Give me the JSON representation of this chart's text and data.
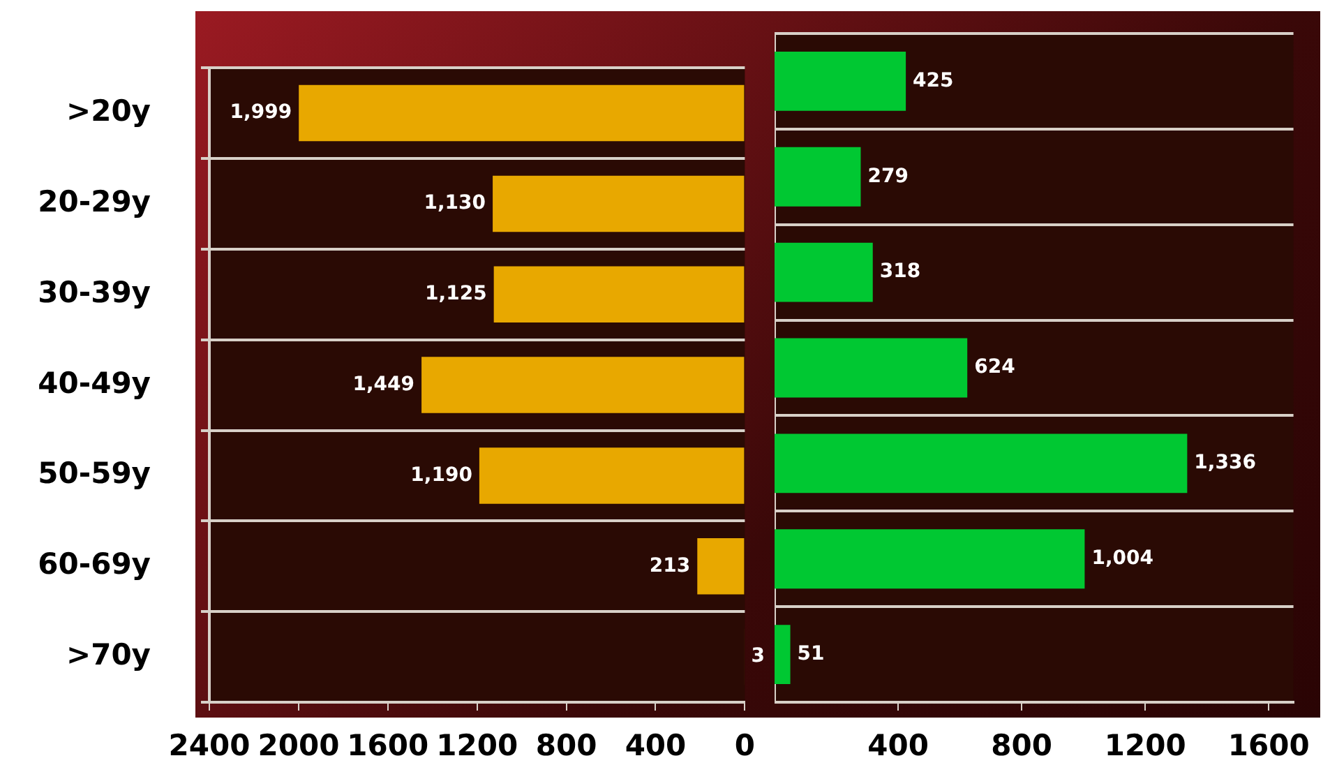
{
  "chart_data": [
    {
      "type": "bar",
      "orientation": "horizontal",
      "categories": [
        ">20y",
        "20-29y",
        "30-39y",
        "40-49y",
        "50-59y",
        "60-69y",
        ">70y"
      ],
      "series": [
        {
          "color": "#e8a800",
          "values": [
            1999,
            1130,
            1125,
            1449,
            1190,
            213,
            3
          ],
          "value_labels": [
            "1,999",
            "1,130",
            "1,125",
            "1,449",
            "1,190",
            "213",
            "3"
          ]
        }
      ],
      "xlim": [
        2400,
        0
      ],
      "xticks": [
        2400,
        2000,
        1600,
        1200,
        800,
        400,
        0
      ],
      "grid": "y"
    },
    {
      "type": "bar",
      "orientation": "horizontal",
      "categories": [
        null,
        null,
        null,
        null,
        null,
        null,
        null
      ],
      "series": [
        {
          "color": "#00c832",
          "values": [
            425,
            279,
            318,
            624,
            1336,
            1004,
            51
          ],
          "value_labels": [
            "425",
            "279",
            "318",
            "624",
            "1,336",
            "1,004",
            "51"
          ]
        }
      ],
      "xlim": [
        0,
        1680
      ],
      "xticks": [
        400,
        800,
        1200,
        1600
      ],
      "grid": "y",
      "tick_labels": "x"
    }
  ]
}
